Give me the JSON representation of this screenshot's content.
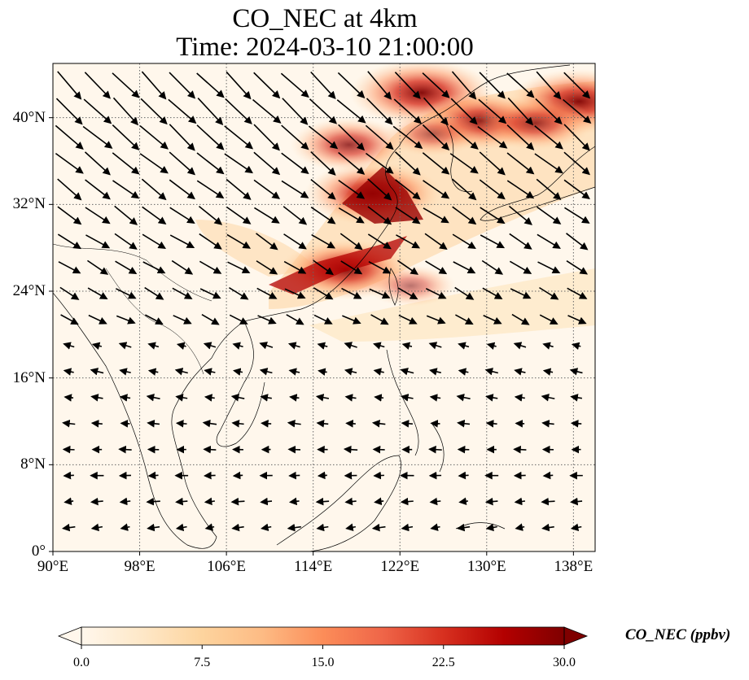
{
  "title": {
    "line1": "CO_NEC at 4km",
    "line2": "Time: 2024-03-10 21:00:00"
  },
  "map": {
    "lon_range": [
      90,
      140
    ],
    "lat_range": [
      0,
      45
    ],
    "lat_ticks": [
      {
        "value": 40,
        "label": "40°N"
      },
      {
        "value": 32,
        "label": "32°N"
      },
      {
        "value": 24,
        "label": "24°N"
      },
      {
        "value": 16,
        "label": "16°N"
      },
      {
        "value": 8,
        "label": "8°N"
      },
      {
        "value": 0,
        "label": "0°"
      }
    ],
    "lon_ticks": [
      {
        "value": 90,
        "label": "90°E"
      },
      {
        "value": 98,
        "label": "98°E"
      },
      {
        "value": 106,
        "label": "106°E"
      },
      {
        "value": 114,
        "label": "114°E"
      },
      {
        "value": 122,
        "label": "122°E"
      },
      {
        "value": 130,
        "label": "130°E"
      },
      {
        "value": 138,
        "label": "138°E"
      }
    ],
    "gridlines": true,
    "vectors": "wind arrows",
    "plumes": [
      {
        "lon": 119.5,
        "lat": 33.0,
        "value": 28
      },
      {
        "lon": 117.0,
        "lat": 26.0,
        "value": 26
      },
      {
        "lon": 124.0,
        "lat": 42.3,
        "value": 30
      },
      {
        "lon": 138.5,
        "lat": 41.5,
        "value": 29
      },
      {
        "lon": 129.5,
        "lat": 39.7,
        "value": 25
      },
      {
        "lon": 134.5,
        "lat": 39.5,
        "value": 22
      },
      {
        "lon": 117.3,
        "lat": 37.5,
        "value": 22
      },
      {
        "lon": 125.0,
        "lat": 38.5,
        "value": 16
      },
      {
        "lon": 123.0,
        "lat": 24.5,
        "value": 14
      }
    ]
  },
  "colorbar": {
    "label": "CO_NEC (ppbv)",
    "min": 0.0,
    "max": 30.0,
    "ticks": [
      "0.0",
      "7.5",
      "15.0",
      "22.5",
      "30.0"
    ],
    "colormap": "OrRd",
    "colors": [
      "#fff7ec",
      "#fee8c8",
      "#fdd49e",
      "#fdbb84",
      "#fc8d59",
      "#ef6548",
      "#d7301f",
      "#b30000",
      "#7f0000"
    ]
  }
}
